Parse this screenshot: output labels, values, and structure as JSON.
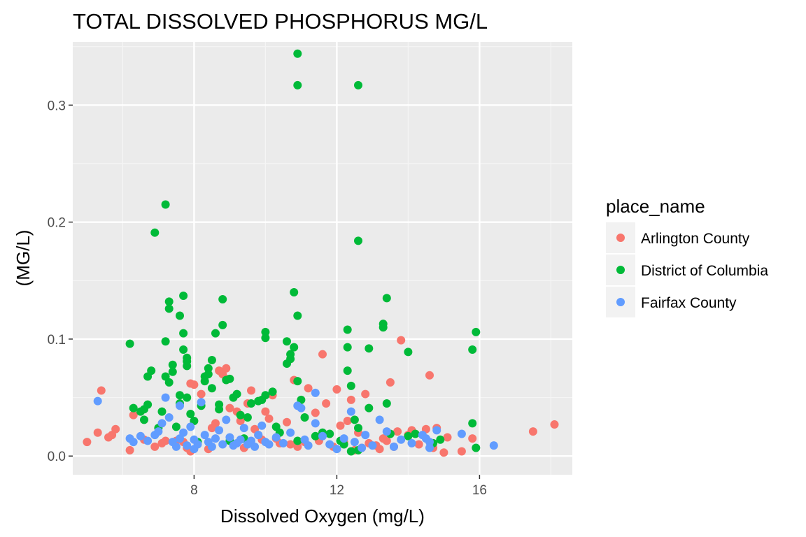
{
  "chart_data": {
    "type": "scatter",
    "title": "TOTAL DISSOLVED PHOSPHORUS MG/L",
    "xlabel": "Dissolved Oxygen (mg/L)",
    "ylabel": "(MG/L)",
    "xlim": [
      4.6,
      18.6
    ],
    "ylim": [
      -0.016,
      0.354
    ],
    "xticks": [
      8,
      12,
      16
    ],
    "xtick_labels": [
      "8",
      "12",
      "16"
    ],
    "yticks": [
      0.0,
      0.1,
      0.2,
      0.3
    ],
    "ytick_labels": [
      "0.0",
      "0.1",
      "0.2",
      "0.3"
    ],
    "grid": true,
    "legend": {
      "title": "place_name",
      "position": "right",
      "entries": [
        "Arlington County",
        "District of Columbia",
        "Fairfax County"
      ]
    },
    "series": [
      {
        "name": "Arlington County",
        "color": "#F8766D",
        "points": [
          [
            5.0,
            0.012
          ],
          [
            5.3,
            0.02
          ],
          [
            5.4,
            0.056
          ],
          [
            5.6,
            0.016
          ],
          [
            5.7,
            0.018
          ],
          [
            5.8,
            0.023
          ],
          [
            6.2,
            0.005
          ],
          [
            6.3,
            0.035
          ],
          [
            6.6,
            0.014
          ],
          [
            6.9,
            0.008
          ],
          [
            7.1,
            0.011
          ],
          [
            7.2,
            0.013
          ],
          [
            7.5,
            0.013
          ],
          [
            7.7,
            0.012
          ],
          [
            7.8,
            0.007
          ],
          [
            7.9,
            0.004
          ],
          [
            7.9,
            0.062
          ],
          [
            8.0,
            0.061
          ],
          [
            8.2,
            0.053
          ],
          [
            8.4,
            0.006
          ],
          [
            8.5,
            0.024
          ],
          [
            8.6,
            0.028
          ],
          [
            8.7,
            0.073
          ],
          [
            8.8,
            0.07
          ],
          [
            8.9,
            0.075
          ],
          [
            8.9,
            0.066
          ],
          [
            9.0,
            0.041
          ],
          [
            9.2,
            0.038
          ],
          [
            9.3,
            0.03
          ],
          [
            9.4,
            0.007
          ],
          [
            9.6,
            0.056
          ],
          [
            9.7,
            0.023
          ],
          [
            9.8,
            0.018
          ],
          [
            9.9,
            0.014
          ],
          [
            10.0,
            0.038
          ],
          [
            10.1,
            0.032
          ],
          [
            10.2,
            0.052
          ],
          [
            10.3,
            0.015
          ],
          [
            10.4,
            0.011
          ],
          [
            10.6,
            0.029
          ],
          [
            10.7,
            0.01
          ],
          [
            10.9,
            0.008
          ],
          [
            11.1,
            0.012
          ],
          [
            11.2,
            0.058
          ],
          [
            11.4,
            0.037
          ],
          [
            11.5,
            0.013
          ],
          [
            11.6,
            0.087
          ],
          [
            11.7,
            0.045
          ],
          [
            11.9,
            0.008
          ],
          [
            12.0,
            0.057
          ],
          [
            12.1,
            0.026
          ],
          [
            12.2,
            0.012
          ],
          [
            12.3,
            0.03
          ],
          [
            12.4,
            0.048
          ],
          [
            12.6,
            0.02
          ],
          [
            12.7,
            0.007
          ],
          [
            12.8,
            0.053
          ],
          [
            12.9,
            0.011
          ],
          [
            13.1,
            0.009
          ],
          [
            13.2,
            0.006
          ],
          [
            13.4,
            0.013
          ],
          [
            13.5,
            0.063
          ],
          [
            13.6,
            0.008
          ],
          [
            13.7,
            0.021
          ],
          [
            13.8,
            0.099
          ],
          [
            14.0,
            0.018
          ],
          [
            14.1,
            0.022
          ],
          [
            14.3,
            0.01
          ],
          [
            14.5,
            0.023
          ],
          [
            14.6,
            0.069
          ],
          [
            14.7,
            0.007
          ],
          [
            14.8,
            0.024
          ],
          [
            15.0,
            0.003
          ],
          [
            15.1,
            0.016
          ],
          [
            15.5,
            0.004
          ],
          [
            15.8,
            0.015
          ],
          [
            17.5,
            0.021
          ],
          [
            18.1,
            0.027
          ],
          [
            9.5,
            0.045
          ],
          [
            10.8,
            0.065
          ],
          [
            12.5,
            0.005
          ],
          [
            13.3,
            0.015
          ]
        ]
      },
      {
        "name": "District of Columbia",
        "color": "#00BA38",
        "points": [
          [
            6.2,
            0.096
          ],
          [
            6.3,
            0.041
          ],
          [
            6.5,
            0.038
          ],
          [
            6.6,
            0.04
          ],
          [
            6.6,
            0.031
          ],
          [
            6.7,
            0.044
          ],
          [
            6.7,
            0.068
          ],
          [
            6.8,
            0.073
          ],
          [
            6.9,
            0.191
          ],
          [
            7.0,
            0.024
          ],
          [
            7.1,
            0.038
          ],
          [
            7.2,
            0.068
          ],
          [
            7.2,
            0.098
          ],
          [
            7.2,
            0.215
          ],
          [
            7.3,
            0.132
          ],
          [
            7.3,
            0.126
          ],
          [
            7.3,
            0.063
          ],
          [
            7.4,
            0.078
          ],
          [
            7.4,
            0.072
          ],
          [
            7.5,
            0.025
          ],
          [
            7.6,
            0.12
          ],
          [
            7.6,
            0.052
          ],
          [
            7.6,
            0.045
          ],
          [
            7.7,
            0.137
          ],
          [
            7.7,
            0.105
          ],
          [
            7.7,
            0.091
          ],
          [
            7.8,
            0.081
          ],
          [
            7.8,
            0.084
          ],
          [
            7.8,
            0.077
          ],
          [
            7.8,
            0.05
          ],
          [
            7.9,
            0.036
          ],
          [
            8.0,
            0.03
          ],
          [
            8.1,
            0.012
          ],
          [
            8.2,
            0.043
          ],
          [
            8.3,
            0.064
          ],
          [
            8.4,
            0.075
          ],
          [
            8.4,
            0.07
          ],
          [
            8.5,
            0.082
          ],
          [
            8.5,
            0.058
          ],
          [
            8.6,
            0.105
          ],
          [
            8.7,
            0.044
          ],
          [
            8.7,
            0.04
          ],
          [
            8.8,
            0.112
          ],
          [
            8.8,
            0.134
          ],
          [
            8.9,
            0.065
          ],
          [
            9.0,
            0.066
          ],
          [
            9.1,
            0.05
          ],
          [
            9.2,
            0.053
          ],
          [
            9.3,
            0.035
          ],
          [
            9.4,
            0.015
          ],
          [
            9.5,
            0.033
          ],
          [
            9.6,
            0.045
          ],
          [
            9.8,
            0.047
          ],
          [
            9.9,
            0.048
          ],
          [
            10.0,
            0.101
          ],
          [
            10.0,
            0.106
          ],
          [
            10.2,
            0.055
          ],
          [
            10.3,
            0.025
          ],
          [
            10.4,
            0.02
          ],
          [
            10.6,
            0.098
          ],
          [
            10.6,
            0.079
          ],
          [
            10.7,
            0.083
          ],
          [
            10.7,
            0.087
          ],
          [
            10.8,
            0.14
          ],
          [
            10.8,
            0.093
          ],
          [
            10.9,
            0.064
          ],
          [
            10.9,
            0.12
          ],
          [
            11.0,
            0.048
          ],
          [
            11.1,
            0.033
          ],
          [
            10.9,
            0.317
          ],
          [
            10.9,
            0.344
          ],
          [
            12.6,
            0.317
          ],
          [
            12.6,
            0.184
          ],
          [
            11.4,
            0.017
          ],
          [
            11.6,
            0.02
          ],
          [
            11.8,
            0.019
          ],
          [
            12.1,
            0.013
          ],
          [
            12.2,
            0.01
          ],
          [
            12.3,
            0.108
          ],
          [
            12.3,
            0.093
          ],
          [
            12.3,
            0.073
          ],
          [
            12.4,
            0.06
          ],
          [
            12.5,
            0.031
          ],
          [
            12.6,
            0.024
          ],
          [
            12.9,
            0.092
          ],
          [
            12.9,
            0.041
          ],
          [
            13.3,
            0.113
          ],
          [
            13.3,
            0.11
          ],
          [
            13.4,
            0.135
          ],
          [
            13.4,
            0.045
          ],
          [
            13.5,
            0.019
          ],
          [
            14.0,
            0.089
          ],
          [
            14.0,
            0.017
          ],
          [
            14.2,
            0.019
          ],
          [
            14.7,
            0.011
          ],
          [
            14.9,
            0.014
          ],
          [
            15.8,
            0.091
          ],
          [
            15.8,
            0.028
          ],
          [
            15.9,
            0.106
          ],
          [
            15.9,
            0.007
          ],
          [
            12.4,
            0.004
          ],
          [
            12.6,
            0.005
          ],
          [
            10.9,
            0.013
          ],
          [
            8.3,
            0.068
          ],
          [
            9.0,
            0.013
          ],
          [
            10.0,
            0.052
          ]
        ]
      },
      {
        "name": "Fairfax County",
        "color": "#619CFF",
        "points": [
          [
            5.3,
            0.047
          ],
          [
            6.2,
            0.015
          ],
          [
            6.3,
            0.012
          ],
          [
            6.5,
            0.017
          ],
          [
            6.7,
            0.013
          ],
          [
            6.9,
            0.018
          ],
          [
            7.0,
            0.021
          ],
          [
            7.1,
            0.028
          ],
          [
            7.2,
            0.05
          ],
          [
            7.3,
            0.033
          ],
          [
            7.4,
            0.012
          ],
          [
            7.5,
            0.008
          ],
          [
            7.6,
            0.015
          ],
          [
            7.7,
            0.02
          ],
          [
            7.8,
            0.009
          ],
          [
            7.9,
            0.025
          ],
          [
            8.0,
            0.014
          ],
          [
            8.1,
            0.01
          ],
          [
            8.2,
            0.046
          ],
          [
            8.3,
            0.018
          ],
          [
            8.4,
            0.012
          ],
          [
            8.5,
            0.008
          ],
          [
            8.6,
            0.015
          ],
          [
            8.7,
            0.022
          ],
          [
            8.8,
            0.01
          ],
          [
            8.9,
            0.031
          ],
          [
            9.0,
            0.016
          ],
          [
            9.1,
            0.009
          ],
          [
            9.2,
            0.011
          ],
          [
            9.3,
            0.014
          ],
          [
            9.4,
            0.024
          ],
          [
            9.5,
            0.01
          ],
          [
            9.6,
            0.013
          ],
          [
            9.7,
            0.008
          ],
          [
            9.8,
            0.018
          ],
          [
            9.9,
            0.026
          ],
          [
            10.0,
            0.012
          ],
          [
            10.1,
            0.01
          ],
          [
            10.3,
            0.016
          ],
          [
            10.5,
            0.011
          ],
          [
            10.7,
            0.02
          ],
          [
            10.9,
            0.043
          ],
          [
            11.0,
            0.041
          ],
          [
            11.1,
            0.014
          ],
          [
            11.2,
            0.009
          ],
          [
            11.4,
            0.054
          ],
          [
            11.4,
            0.028
          ],
          [
            11.6,
            0.017
          ],
          [
            11.8,
            0.01
          ],
          [
            12.0,
            0.006
          ],
          [
            12.2,
            0.015
          ],
          [
            12.4,
            0.038
          ],
          [
            12.5,
            0.012
          ],
          [
            12.7,
            0.007
          ],
          [
            12.8,
            0.018
          ],
          [
            13.0,
            0.009
          ],
          [
            13.2,
            0.031
          ],
          [
            13.4,
            0.021
          ],
          [
            13.6,
            0.008
          ],
          [
            13.8,
            0.014
          ],
          [
            14.1,
            0.011
          ],
          [
            14.4,
            0.018
          ],
          [
            14.5,
            0.015
          ],
          [
            14.6,
            0.012
          ],
          [
            14.6,
            0.007
          ],
          [
            14.8,
            0.022
          ],
          [
            15.5,
            0.019
          ],
          [
            16.4,
            0.009
          ],
          [
            7.6,
            0.043
          ],
          [
            8.0,
            0.006
          ]
        ]
      }
    ]
  }
}
